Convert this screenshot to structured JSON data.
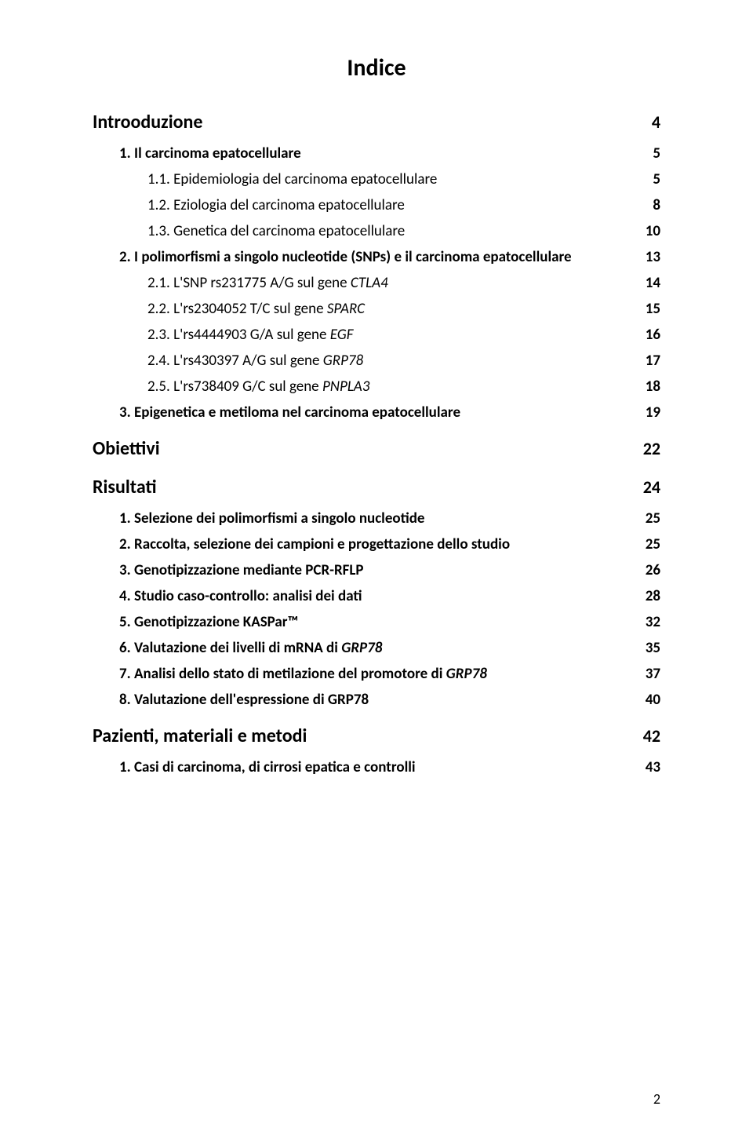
{
  "title": "Indice",
  "sections": [
    {
      "heading": "Introoduzione",
      "page": "4",
      "items": [
        {
          "num": "1.",
          "text": "Il carcinoma epatocellulare",
          "page": "5",
          "sub": false
        },
        {
          "num": "1.1.",
          "text": "Epidemiologia del carcinoma epatocellulare",
          "page": "5",
          "sub": true
        },
        {
          "num": "1.2.",
          "text": "Eziologia del carcinoma epatocellulare",
          "page": "8",
          "sub": true
        },
        {
          "num": "1.3.",
          "text": "Genetica del carcinoma epatocellulare",
          "page": "10",
          "sub": true
        },
        {
          "num": "2.",
          "text": "I polimorfismi a singolo nucleotide (SNPs) e il carcinoma epatocellulare",
          "page": "13",
          "sub": false
        },
        {
          "num": "2.1.",
          "text": "L'SNP rs231775 A/G sul gene ",
          "italic": "CTLA4",
          "page": "14",
          "sub": true
        },
        {
          "num": "2.2.",
          "text": "L'rs2304052 T/C sul gene ",
          "italic": "SPARC",
          "page": "15",
          "sub": true
        },
        {
          "num": "2.3.",
          "text": "L'rs4444903 G/A sul gene ",
          "italic": "EGF",
          "page": "16",
          "sub": true
        },
        {
          "num": "2.4.",
          "text": "L'rs430397 A/G sul gene ",
          "italic": "GRP78",
          "page": "17",
          "sub": true
        },
        {
          "num": "2.5.",
          "text": "L'rs738409 G/C sul gene ",
          "italic": "PNPLA3",
          "page": "18",
          "sub": true
        },
        {
          "num": "3.",
          "text": "Epigenetica e metiloma nel carcinoma epatocellulare",
          "page": "19",
          "sub": false
        }
      ]
    },
    {
      "heading": "Obiettivi",
      "page": "22",
      "items": []
    },
    {
      "heading": "Risultati",
      "page": "24",
      "items": [
        {
          "num": "1.",
          "text": "Selezione dei polimorfismi a singolo nucleotide",
          "page": "25",
          "sub": false
        },
        {
          "num": "2.",
          "text": "Raccolta, selezione dei campioni e progettazione dello studio",
          "page": "25",
          "sub": false
        },
        {
          "num": "3.",
          "text": "Genotipizzazione mediante PCR-RFLP",
          "page": "26",
          "sub": false
        },
        {
          "num": "4.",
          "text": "Studio caso-controllo: analisi dei dati",
          "page": "28",
          "sub": false
        },
        {
          "num": "5.",
          "text": "Genotipizzazione KASPar™",
          "page": "32",
          "sub": false
        },
        {
          "num": "6.",
          "text": "Valutazione dei livelli di mRNA di ",
          "italic": "GRP78",
          "page": "35",
          "sub": false
        },
        {
          "num": "7.",
          "text": "Analisi dello stato di metilazione del promotore di ",
          "italic": "GRP78",
          "page": "37",
          "sub": false
        },
        {
          "num": "8.",
          "text": "Valutazione dell'espressione di GRP78",
          "page": "40",
          "sub": false
        }
      ]
    },
    {
      "heading": "Pazienti, materiali e metodi",
      "page": "42",
      "items": [
        {
          "num": "1.",
          "text": "Casi di carcinoma, di cirrosi epatica e controlli",
          "page": "43",
          "sub": false
        }
      ]
    }
  ],
  "footer_page": "2",
  "colors": {
    "text": "#000000",
    "background": "#ffffff"
  },
  "typography": {
    "title_fontsize": 30,
    "heading_fontsize": 24,
    "item_fontsize": 19,
    "font_family": "Calibri"
  }
}
